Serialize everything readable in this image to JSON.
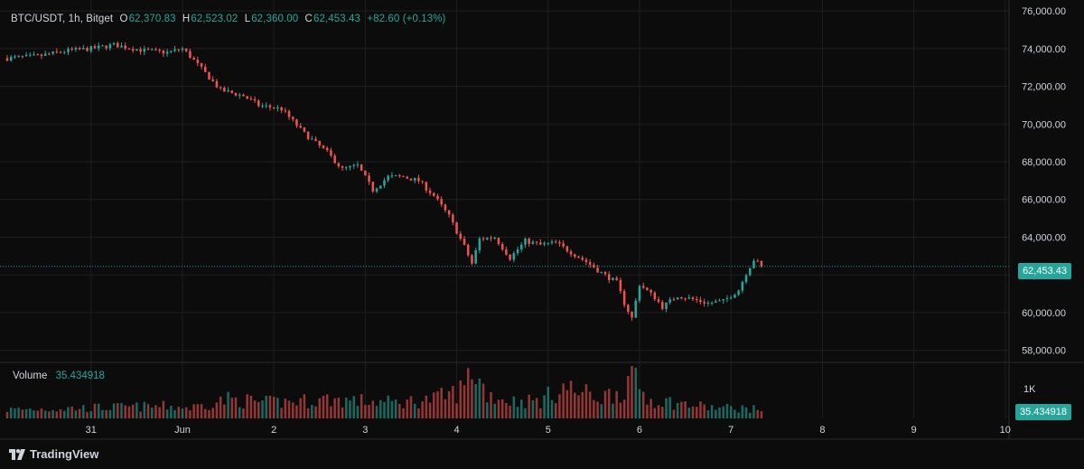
{
  "legend": {
    "symbol": "BTC/USDT, 1h, Bitget",
    "o_label": "O",
    "o_value": "62,370.83",
    "h_label": "H",
    "h_value": "62,523.02",
    "l_label": "L",
    "l_value": "62,360.00",
    "c_label": "C",
    "c_value": "62,453.43",
    "change": "+82.60 (+0.13%)"
  },
  "volume_legend": {
    "title": "Volume",
    "value": "35.434918"
  },
  "last_price_label": "62,453.43",
  "volume_tag": "35.434918",
  "brand": "TradingView",
  "colors": {
    "up": "#26a69a",
    "down": "#ef5350",
    "background": "#0c0c0c",
    "grid": "#1f1f1f",
    "text": "#d1d4dc"
  },
  "chart_data": {
    "type": "candlestick",
    "price_ticks": [
      "76,000.00",
      "74,000.00",
      "72,000.00",
      "70,000.00",
      "68,000.00",
      "66,000.00",
      "64,000.00",
      "62,000.00",
      "60,000.00",
      "58,000.00"
    ],
    "price_tick_values": [
      76000,
      74000,
      72000,
      70000,
      68000,
      66000,
      64000,
      62000,
      60000,
      58000
    ],
    "ylim": [
      57500,
      76200
    ],
    "volume_tick": "1K",
    "x_ticks": [
      "31",
      "Jun",
      "2",
      "3",
      "4",
      "5",
      "6",
      "7",
      "8",
      "9",
      "10"
    ],
    "x_tick_hours": [
      0,
      24,
      48,
      72,
      96,
      120,
      144,
      168,
      192,
      216,
      240
    ],
    "x_range_hours": [
      -22,
      241
    ],
    "last_price": 62453.43,
    "close_path": [
      [
        -22,
        73500
      ],
      [
        -14,
        73600
      ],
      [
        -6,
        73900
      ],
      [
        0,
        74000
      ],
      [
        6,
        74200
      ],
      [
        14,
        73900
      ],
      [
        20,
        73800
      ],
      [
        24,
        74000
      ],
      [
        26,
        73600
      ],
      [
        30,
        72700
      ],
      [
        34,
        71800
      ],
      [
        40,
        71500
      ],
      [
        44,
        71000
      ],
      [
        50,
        70800
      ],
      [
        56,
        69500
      ],
      [
        62,
        68500
      ],
      [
        66,
        67600
      ],
      [
        70,
        67800
      ],
      [
        74,
        66500
      ],
      [
        78,
        67200
      ],
      [
        82,
        67200
      ],
      [
        86,
        67000
      ],
      [
        90,
        66200
      ],
      [
        94,
        65100
      ],
      [
        98,
        63500
      ],
      [
        100,
        62600
      ],
      [
        102,
        63900
      ],
      [
        106,
        64000
      ],
      [
        110,
        62900
      ],
      [
        114,
        63800
      ],
      [
        118,
        63600
      ],
      [
        122,
        63700
      ],
      [
        126,
        63200
      ],
      [
        130,
        62700
      ],
      [
        134,
        62100
      ],
      [
        138,
        61600
      ],
      [
        140,
        60500
      ],
      [
        142,
        59700
      ],
      [
        144,
        61500
      ],
      [
        148,
        60800
      ],
      [
        150,
        60300
      ],
      [
        154,
        60900
      ],
      [
        158,
        60700
      ],
      [
        162,
        60500
      ],
      [
        166,
        60600
      ],
      [
        170,
        61200
      ],
      [
        172,
        62100
      ],
      [
        174,
        62800
      ],
      [
        176,
        62453
      ]
    ],
    "volume_path": [
      [
        -22,
        0.25
      ],
      [
        20,
        0.35
      ],
      [
        26,
        0.3
      ],
      [
        36,
        0.55
      ],
      [
        46,
        0.45
      ],
      [
        56,
        0.5
      ],
      [
        62,
        0.55
      ],
      [
        70,
        0.5
      ],
      [
        80,
        0.45
      ],
      [
        90,
        0.55
      ],
      [
        96,
        0.75
      ],
      [
        98,
        0.9
      ],
      [
        100,
        1.45
      ],
      [
        104,
        0.7
      ],
      [
        110,
        0.5
      ],
      [
        118,
        0.5
      ],
      [
        124,
        0.9
      ],
      [
        128,
        0.75
      ],
      [
        134,
        0.6
      ],
      [
        140,
        0.85
      ],
      [
        142,
        1.25
      ],
      [
        146,
        0.55
      ],
      [
        150,
        0.5
      ],
      [
        156,
        0.4
      ],
      [
        164,
        0.3
      ],
      [
        170,
        0.3
      ],
      [
        176,
        0.25
      ]
    ]
  }
}
